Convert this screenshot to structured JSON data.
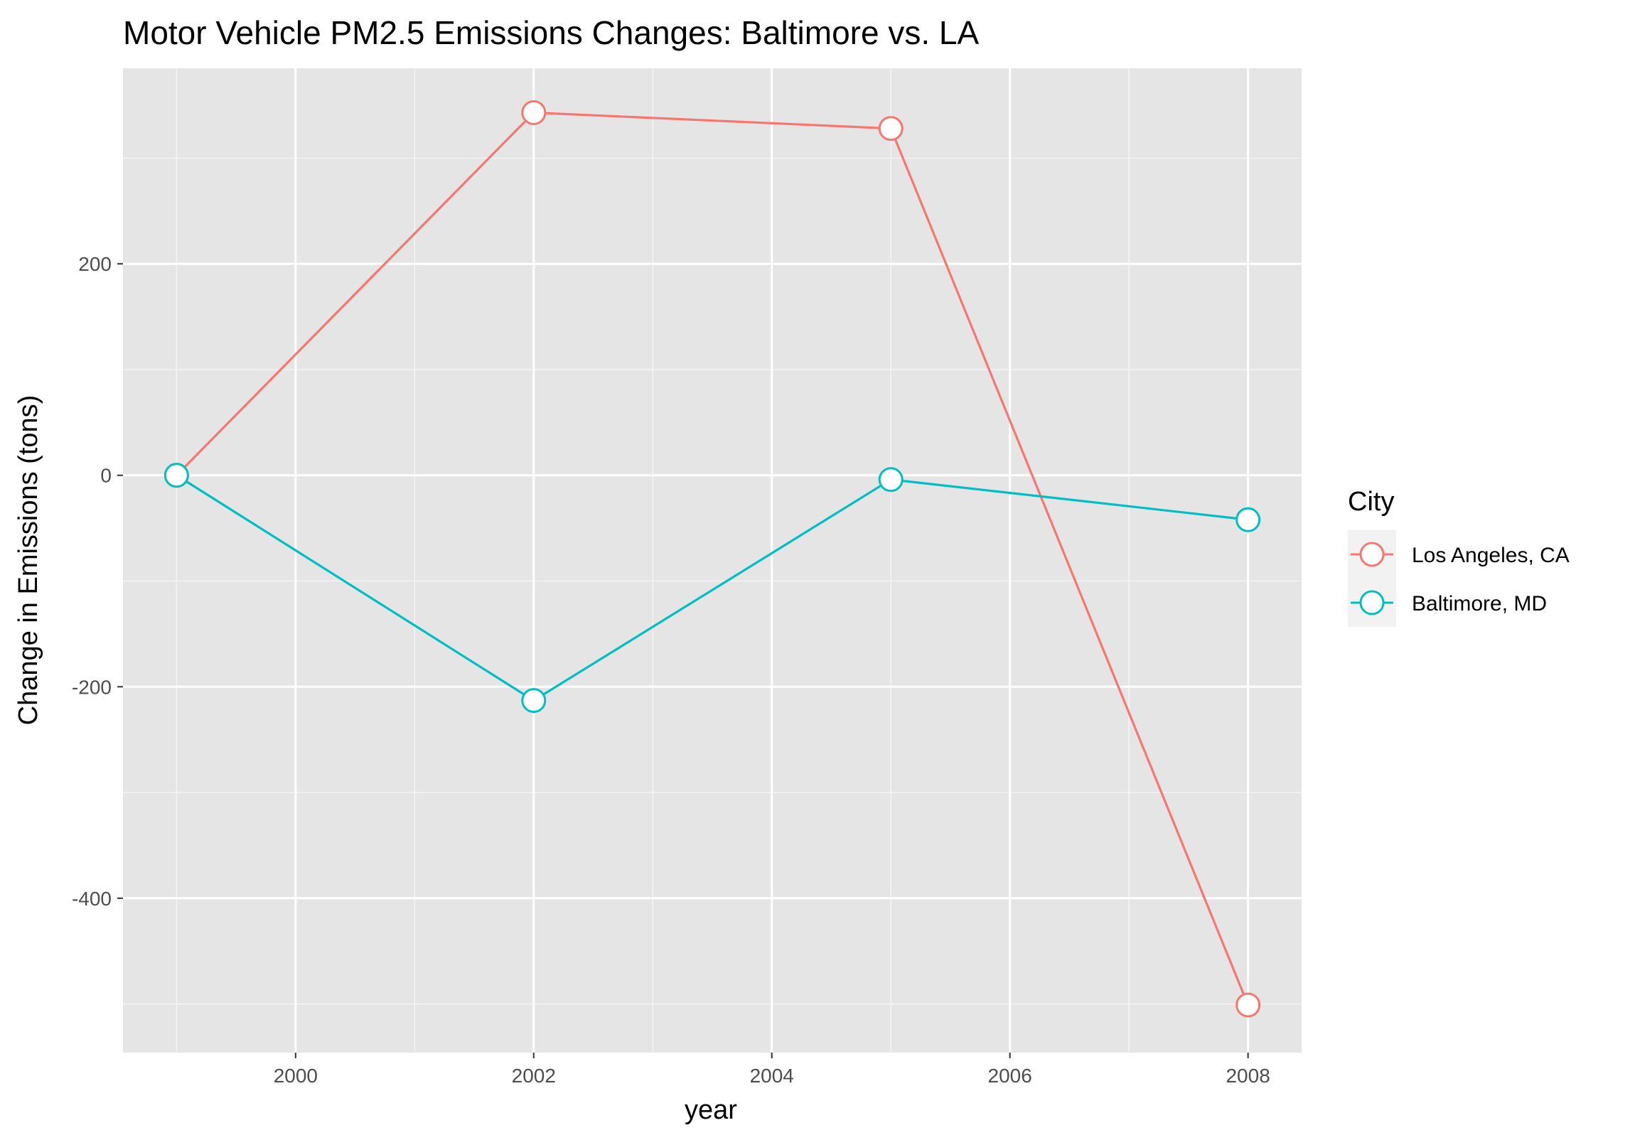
{
  "chart_data": {
    "type": "line",
    "title": "Motor Vehicle PM2.5 Emissions Changes: Baltimore vs. LA",
    "xlabel": "year",
    "ylabel": "Change in Emissions (tons)",
    "x": [
      1999,
      2002,
      2005,
      2008
    ],
    "x_ticks": [
      2000,
      2002,
      2004,
      2006,
      2008
    ],
    "x_tick_labels": [
      "2000",
      "2002",
      "2004",
      "2006",
      "2008"
    ],
    "y_ticks": [
      -400,
      -200,
      0,
      200
    ],
    "y_tick_labels": [
      "-400",
      "-200",
      "0",
      "200"
    ],
    "xlim": [
      1998.55,
      2008.45
    ],
    "ylim": [
      -546,
      385
    ],
    "grid": true,
    "legend_position": "right",
    "legend_title": "City",
    "series": [
      {
        "name": "Los Angeles, CA",
        "color": "#F8766D",
        "values": [
          0,
          343,
          328,
          -501
        ]
      },
      {
        "name": "Baltimore, MD",
        "color": "#00BFC4",
        "values": [
          0,
          -213,
          -4,
          -42
        ]
      }
    ]
  }
}
